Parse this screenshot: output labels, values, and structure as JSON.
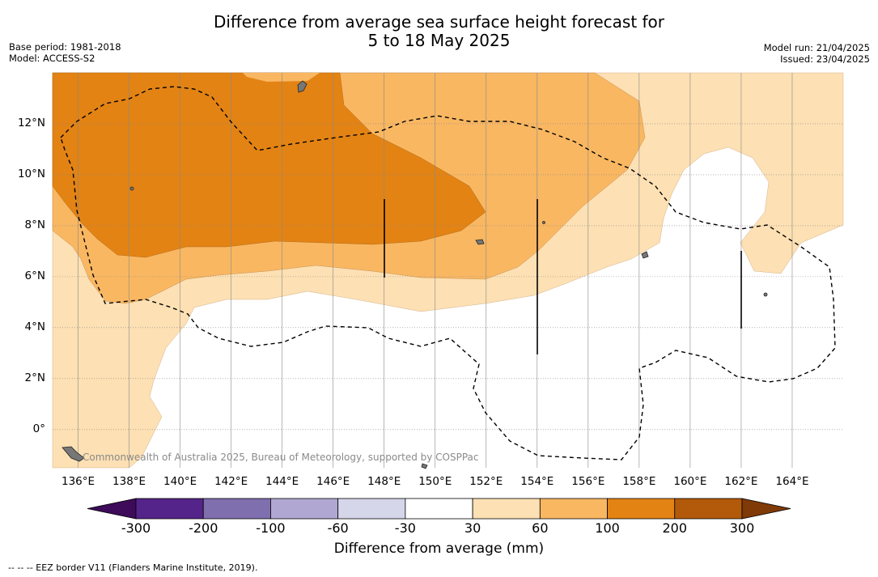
{
  "title": {
    "line1": "Difference from average sea surface height forecast for",
    "line2": "5 to 18 May 2025"
  },
  "meta": {
    "base_period": "Base period: 1981-2018",
    "model": "Model: ACCESS-S2",
    "model_run": "Model run: 21/04/2025",
    "issued": "Issued: 23/04/2025"
  },
  "map": {
    "lon_range": [
      135,
      166
    ],
    "lat_range": [
      -1.5,
      14
    ],
    "x_ticks": [
      "136°E",
      "138°E",
      "140°E",
      "142°E",
      "144°E",
      "146°E",
      "148°E",
      "150°E",
      "152°E",
      "154°E",
      "156°E",
      "158°E",
      "160°E",
      "162°E",
      "164°E"
    ],
    "y_ticks": [
      "12°N",
      "10°N",
      "8°N",
      "6°N",
      "4°N",
      "2°N",
      "0°"
    ],
    "credit": "Commonwealth of Australia 2025, Bureau of Meteorology, supported by COSPPac"
  },
  "colorbar": {
    "labels": [
      "-300",
      "-200",
      "-100",
      "-60",
      "-30",
      "30",
      "60",
      "100",
      "200",
      "300"
    ],
    "title": "Difference from average (mm)",
    "colors": [
      "#3d0b5a",
      "#55248a",
      "#7f6fae",
      "#b0a8d2",
      "#d6d6ea",
      "#ffffff",
      "#fde0b3",
      "#f9b762",
      "#e38314",
      "#b35a0a",
      "#7f3a07"
    ]
  },
  "footnote": "--  --  -- EEZ border V11 (Flanders Marine Institute, 2019)."
}
